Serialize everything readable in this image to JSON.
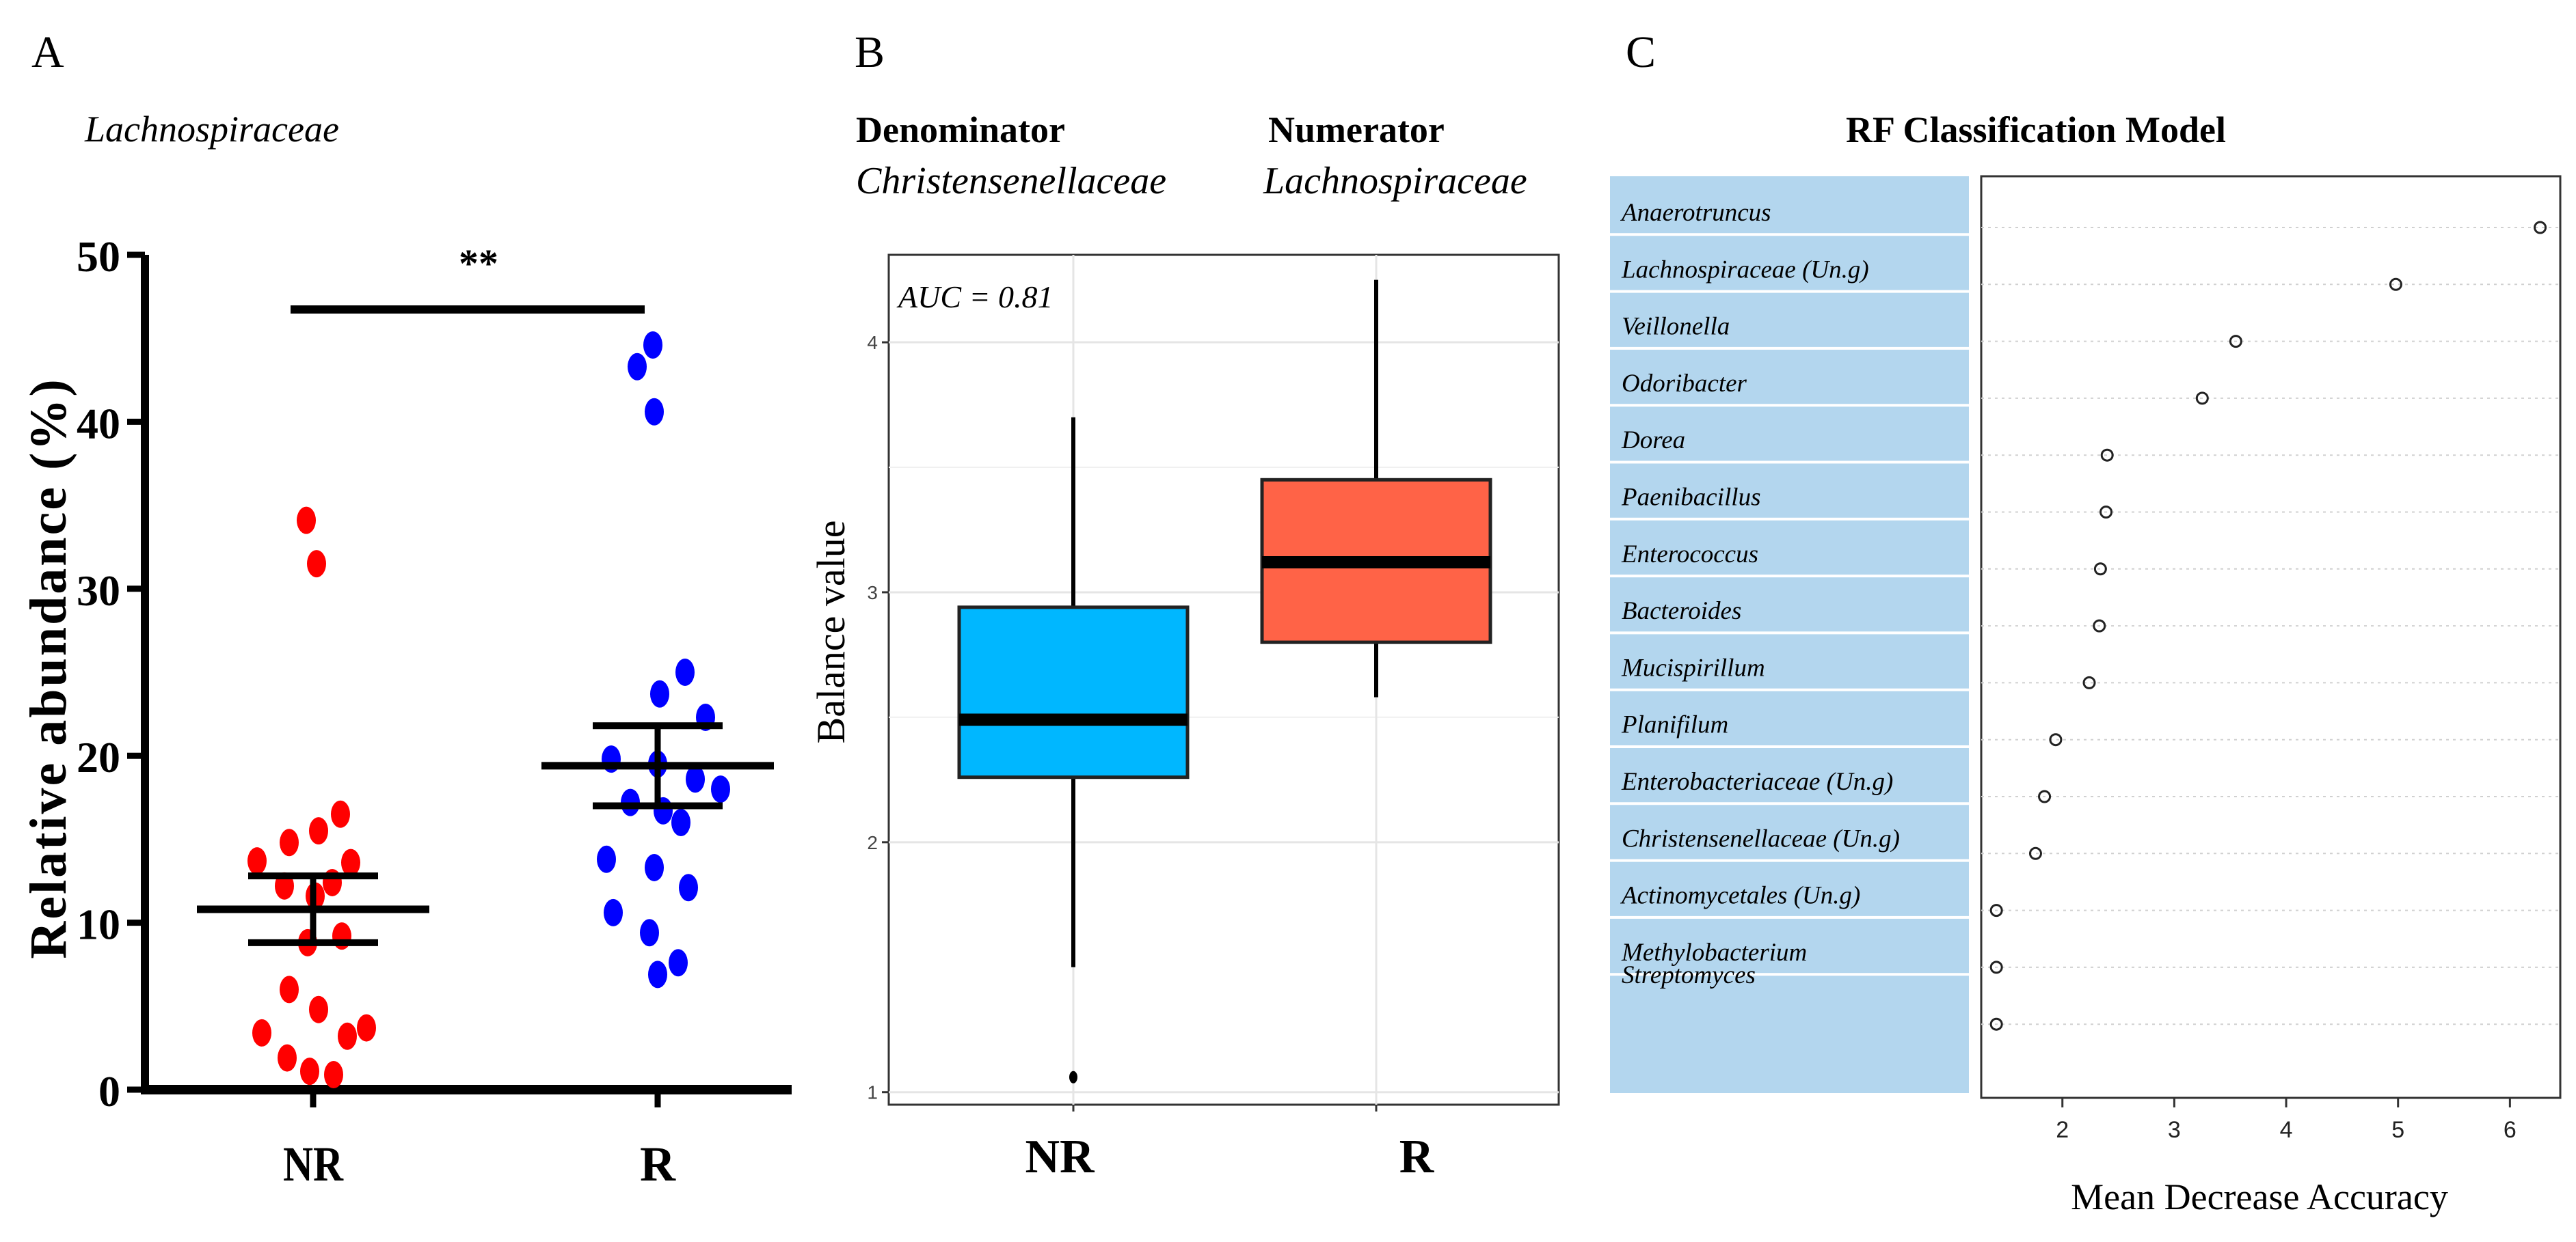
{
  "colors": {
    "nr_dot": "#ff0000",
    "r_dot": "#0000ff",
    "nr_box": "#00b7ff",
    "r_box": "#ff6347",
    "label_bg": "#b3d6ee",
    "grid": "#e5e5e5"
  },
  "chart_data": [
    {
      "panel": "A",
      "type": "scatter",
      "title": "Lachnospiraceae",
      "xlabel": "",
      "ylabel": "Relative abundance (%)",
      "categories": [
        "NR",
        "R"
      ],
      "ylim": [
        0,
        50
      ],
      "yticks": [
        "0",
        "10",
        "20",
        "30",
        "40",
        "50"
      ],
      "significance": "**",
      "series": [
        {
          "name": "NR",
          "values": [
            34.1,
            31.5,
            16.5,
            15.5,
            14.8,
            13.7,
            13.6,
            12.2,
            12.4,
            11.6,
            9.2,
            8.8,
            6.0,
            4.8,
            3.7,
            3.4,
            3.2,
            1.9,
            1.1,
            0.9
          ],
          "mean": 10.8,
          "sem_low": 8.8,
          "sem_high": 12.8
        },
        {
          "name": "R",
          "values": [
            44.6,
            43.3,
            40.6,
            25.0,
            23.7,
            22.3,
            19.8,
            19.5,
            18.6,
            18.0,
            17.2,
            16.7,
            16.0,
            13.8,
            13.3,
            12.1,
            10.6,
            9.4,
            7.6,
            6.9
          ],
          "mean": 19.4,
          "sem_low": 17.0,
          "sem_high": 21.8
        }
      ]
    },
    {
      "panel": "B",
      "type": "box",
      "denominator_label": "Denominator",
      "denominator_taxon": "Christensenellaceae",
      "numerator_label": "Numerator",
      "numerator_taxon": "Lachnospiraceae",
      "annotation": "AUC = 0.81",
      "xlabel": "",
      "ylabel": "Balance value",
      "categories": [
        "NR",
        "R"
      ],
      "ylim": [
        0.95,
        4.35
      ],
      "yticks": [
        "1",
        "2",
        "3",
        "4"
      ],
      "boxes": [
        {
          "name": "NR",
          "whisker_low": 1.5,
          "q1": 2.26,
          "median": 2.49,
          "q3": 2.94,
          "whisker_high": 3.7,
          "outliers": [
            1.06
          ]
        },
        {
          "name": "R",
          "whisker_low": 2.58,
          "q1": 2.8,
          "median": 3.12,
          "q3": 3.45,
          "whisker_high": 4.25,
          "outliers": []
        }
      ]
    },
    {
      "panel": "C",
      "type": "scatter",
      "title": "RF Classification  Model",
      "xlabel": "Mean Decrease Accuracy",
      "ylabel": "",
      "xlim": [
        1.25,
        6.45
      ],
      "xticks": [
        "2",
        "3",
        "4",
        "5",
        "6"
      ],
      "categories": [
        "Anaerotruncus",
        "Lachnospiraceae (Un.g)",
        "Veillonella",
        "Odoribacter",
        "Dorea",
        "Paenibacillus",
        "Enterococcus",
        "Bacteroides",
        "Mucispirillum",
        "Planifilum",
        "Enterobacteriaceae (Un.g)",
        "Christensenellaceae (Un.g)",
        "Actinomycetales (Un.g)",
        "Methylobacterium",
        "Streptomyces"
      ],
      "values": [
        6.27,
        4.98,
        3.55,
        3.25,
        2.4,
        2.39,
        2.34,
        2.33,
        2.24,
        1.94,
        1.84,
        1.76,
        1.41,
        1.41,
        1.41
      ]
    }
  ],
  "panel_labels": {
    "a": "A",
    "b": "B",
    "c": "C"
  }
}
